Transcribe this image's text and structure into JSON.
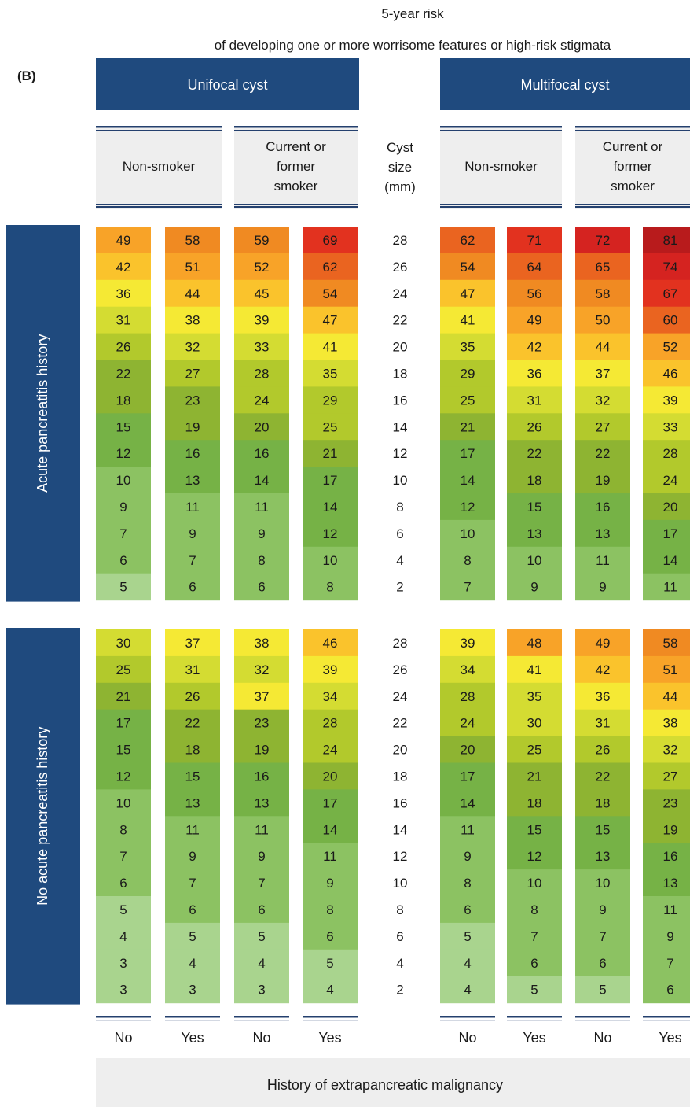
{
  "chart_data": {
    "type": "heatmap",
    "panel_label": "(B)",
    "title": "5-year risk",
    "subtitle": "of developing one or more worrisome features or high-risk stigmata",
    "cyst_types": [
      "Unifocal cyst",
      "Multifocal cyst"
    ],
    "smoking_groups": [
      "Non-smoker",
      "Current or former smoker"
    ],
    "malignancy_labels": [
      "No",
      "Yes"
    ],
    "x_title": "History of extrapancreatic malignancy",
    "size_header": "Cyst size (mm)",
    "cyst_sizes": [
      28,
      26,
      24,
      22,
      20,
      18,
      16,
      14,
      12,
      10,
      8,
      6,
      4,
      2
    ],
    "color_scale": [
      "#a9d48e",
      "#8cc262",
      "#76b246",
      "#8eb432",
      "#b2c92c",
      "#d4dc32",
      "#f5e934",
      "#fac32c",
      "#f8a328",
      "#f08a22",
      "#ea6420",
      "#e2321f",
      "#d52320",
      "#b81b1c"
    ],
    "panels": [
      {
        "label": "Acute pancreatitis history",
        "columns": [
          {
            "cyst": "Unifocal cyst",
            "smoking": "Non-smoker",
            "malignancy": "No",
            "values": [
              49,
              42,
              36,
              31,
              26,
              22,
              18,
              15,
              12,
              10,
              9,
              7,
              6,
              5
            ]
          },
          {
            "cyst": "Unifocal cyst",
            "smoking": "Non-smoker",
            "malignancy": "Yes",
            "values": [
              58,
              51,
              44,
              38,
              32,
              27,
              23,
              19,
              16,
              13,
              11,
              9,
              7,
              6
            ]
          },
          {
            "cyst": "Unifocal cyst",
            "smoking": "Current or former smoker",
            "malignancy": "No",
            "values": [
              59,
              52,
              45,
              39,
              33,
              28,
              24,
              20,
              16,
              14,
              11,
              9,
              8,
              6
            ]
          },
          {
            "cyst": "Unifocal cyst",
            "smoking": "Current or former smoker",
            "malignancy": "Yes",
            "values": [
              69,
              62,
              54,
              47,
              41,
              35,
              29,
              25,
              21,
              17,
              14,
              12,
              10,
              8
            ]
          },
          {
            "cyst": "Multifocal cyst",
            "smoking": "Non-smoker",
            "malignancy": "No",
            "values": [
              62,
              54,
              47,
              41,
              35,
              29,
              25,
              21,
              17,
              14,
              12,
              10,
              8,
              7
            ]
          },
          {
            "cyst": "Multifocal cyst",
            "smoking": "Non-smoker",
            "malignancy": "Yes",
            "values": [
              71,
              64,
              56,
              49,
              42,
              36,
              31,
              26,
              22,
              18,
              15,
              13,
              10,
              9
            ]
          },
          {
            "cyst": "Multifocal cyst",
            "smoking": "Current or former smoker",
            "malignancy": "No",
            "values": [
              72,
              65,
              58,
              50,
              44,
              37,
              32,
              27,
              22,
              19,
              16,
              13,
              11,
              9
            ]
          },
          {
            "cyst": "Multifocal cyst",
            "smoking": "Current or former smoker",
            "malignancy": "Yes",
            "values": [
              81,
              74,
              67,
              60,
              52,
              46,
              39,
              33,
              28,
              24,
              20,
              17,
              14,
              11
            ]
          }
        ]
      },
      {
        "label": "No acute pancreatitis history",
        "columns": [
          {
            "cyst": "Unifocal cyst",
            "smoking": "Non-smoker",
            "malignancy": "No",
            "values": [
              30,
              25,
              21,
              17,
              15,
              12,
              10,
              8,
              7,
              6,
              5,
              4,
              3,
              3
            ]
          },
          {
            "cyst": "Unifocal cyst",
            "smoking": "Non-smoker",
            "malignancy": "Yes",
            "values": [
              37,
              31,
              26,
              22,
              18,
              15,
              13,
              11,
              9,
              7,
              6,
              5,
              4,
              3
            ]
          },
          {
            "cyst": "Unifocal cyst",
            "smoking": "Current or former smoker",
            "malignancy": "No",
            "values": [
              38,
              32,
              37,
              23,
              19,
              16,
              13,
              11,
              9,
              7,
              6,
              5,
              4,
              3
            ]
          },
          {
            "cyst": "Unifocal cyst",
            "smoking": "Current or former smoker",
            "malignancy": "Yes",
            "values": [
              46,
              39,
              34,
              28,
              24,
              20,
              17,
              14,
              11,
              9,
              8,
              6,
              5,
              4
            ]
          },
          {
            "cyst": "Multifocal cyst",
            "smoking": "Non-smoker",
            "malignancy": "No",
            "values": [
              39,
              34,
              28,
              24,
              20,
              17,
              14,
              11,
              9,
              8,
              6,
              5,
              4,
              4
            ]
          },
          {
            "cyst": "Multifocal cyst",
            "smoking": "Non-smoker",
            "malignancy": "Yes",
            "values": [
              48,
              41,
              35,
              30,
              25,
              21,
              18,
              15,
              12,
              10,
              8,
              7,
              6,
              5
            ]
          },
          {
            "cyst": "Multifocal cyst",
            "smoking": "Current or former smoker",
            "malignancy": "No",
            "values": [
              49,
              42,
              36,
              31,
              26,
              22,
              18,
              15,
              13,
              10,
              9,
              7,
              6,
              5
            ]
          },
          {
            "cyst": "Multifocal cyst",
            "smoking": "Current or former smoker",
            "malignancy": "Yes",
            "values": [
              58,
              51,
              44,
              38,
              32,
              27,
              23,
              19,
              16,
              13,
              11,
              9,
              7,
              6
            ]
          }
        ]
      }
    ]
  }
}
